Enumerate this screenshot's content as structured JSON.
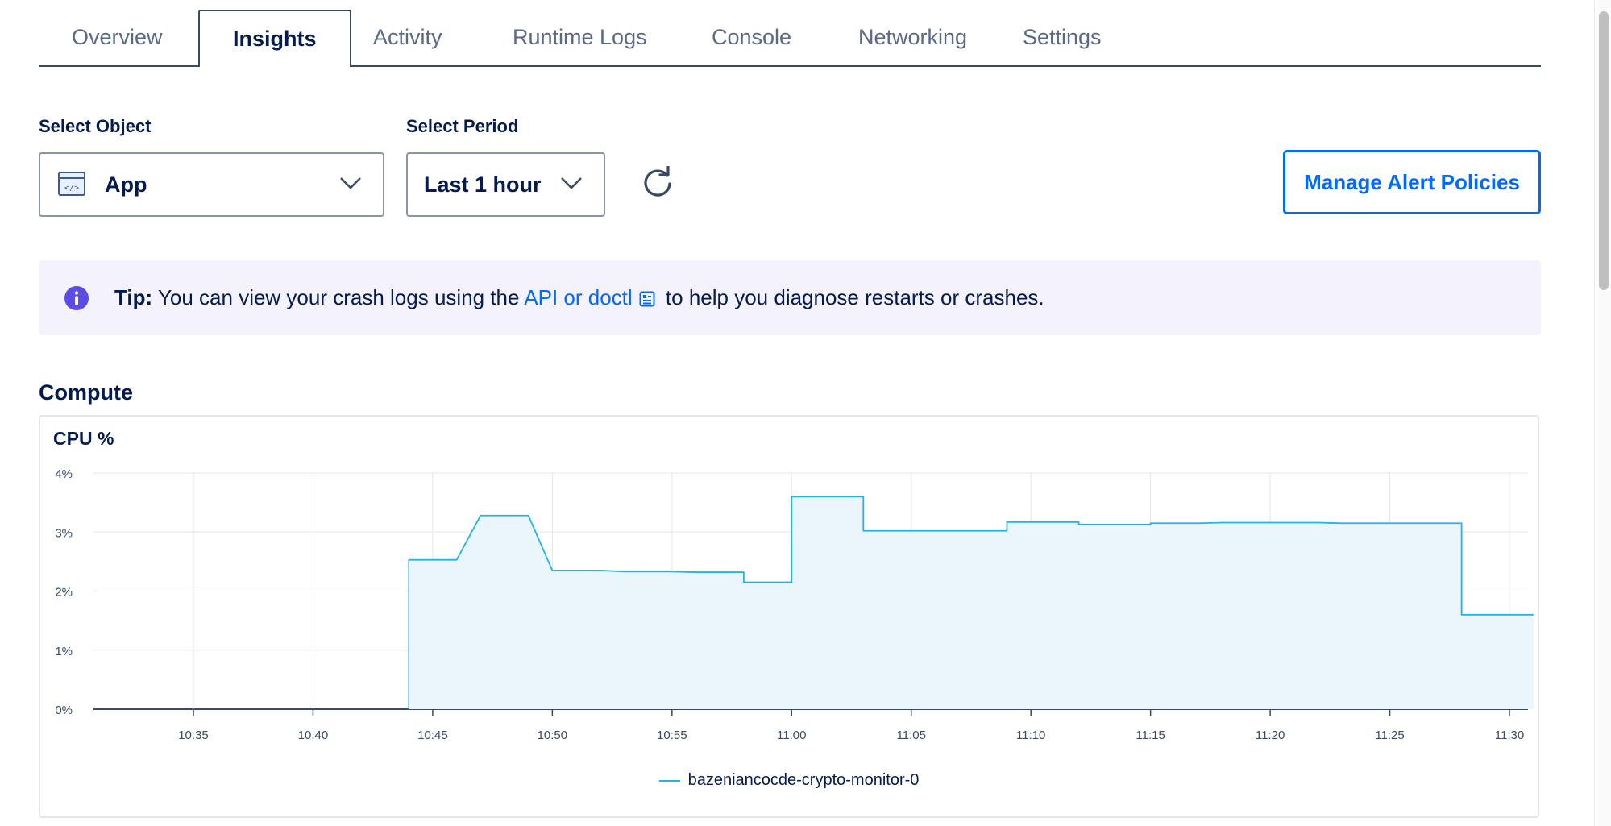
{
  "tabs": [
    {
      "label": "Overview",
      "active": false
    },
    {
      "label": "Insights",
      "active": true
    },
    {
      "label": "Activity",
      "active": false
    },
    {
      "label": "Runtime Logs",
      "active": false
    },
    {
      "label": "Console",
      "active": false
    },
    {
      "label": "Networking",
      "active": false
    },
    {
      "label": "Settings",
      "active": false
    }
  ],
  "controls": {
    "object_label": "Select Object",
    "object_value": "App",
    "object_icon": "app-code-icon",
    "period_label": "Select Period",
    "period_value": "Last 1 hour",
    "refresh_icon": "refresh-icon",
    "manage_button": "Manage Alert Policies"
  },
  "tip": {
    "prefix": "Tip:",
    "text_before": "You can view your crash logs using the",
    "link": "API or doctl",
    "text_after": "to help you diagnose restarts or crashes."
  },
  "compute": {
    "section_title": "Compute",
    "card_title": "CPU %"
  },
  "colors": {
    "accent": "#0069ff",
    "series_line": "#21b4e6",
    "series_fill": "#eaf5fc",
    "tip_background": "#f3f2fd",
    "info_icon": "#5b4ce6"
  },
  "chart_data": {
    "type": "area",
    "title": "CPU %",
    "xlabel": "",
    "ylabel": "",
    "ylim": [
      0,
      4
    ],
    "y_ticks": [
      "0%",
      "1%",
      "2%",
      "3%",
      "4%"
    ],
    "x_ticks": [
      "10:35",
      "10:40",
      "10:45",
      "10:50",
      "10:55",
      "11:00",
      "11:05",
      "11:10",
      "11:15",
      "11:20",
      "11:25",
      "11:30"
    ],
    "grid": true,
    "legend": "bottom-center",
    "series": [
      {
        "name": "bazeniancocde-crypto-monitor-0",
        "points": [
          [
            "10:44",
            2.53
          ],
          [
            "10:46",
            2.53
          ],
          [
            "10:47",
            3.28
          ],
          [
            "10:49",
            3.28
          ],
          [
            "10:50",
            2.35
          ],
          [
            "10:52",
            2.35
          ],
          [
            "10:53",
            2.33
          ],
          [
            "10:55",
            2.33
          ],
          [
            "10:56",
            2.32
          ],
          [
            "10:58",
            2.32
          ],
          [
            "10:58",
            2.15
          ],
          [
            "11:00",
            2.15
          ],
          [
            "11:00",
            3.6
          ],
          [
            "11:03",
            3.6
          ],
          [
            "11:03",
            3.02
          ],
          [
            "11:09",
            3.02
          ],
          [
            "11:09",
            3.17
          ],
          [
            "11:12",
            3.17
          ],
          [
            "11:12",
            3.13
          ],
          [
            "11:15",
            3.13
          ],
          [
            "11:15",
            3.15
          ],
          [
            "11:17",
            3.15
          ],
          [
            "11:18",
            3.16
          ],
          [
            "11:22",
            3.16
          ],
          [
            "11:23",
            3.15
          ],
          [
            "11:28",
            3.15
          ],
          [
            "11:28",
            1.6
          ],
          [
            "11:31",
            1.6
          ]
        ]
      }
    ]
  }
}
